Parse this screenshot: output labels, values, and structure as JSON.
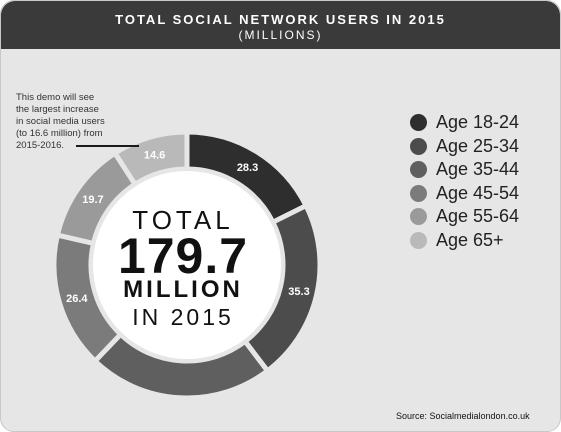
{
  "header": {
    "title": "TOTAL SOCIAL NETWORK USERS IN 2015",
    "subtitle": "(MILLIONS)"
  },
  "annotation": {
    "lines": [
      "This demo will see",
      "the largest increase",
      "in social media users",
      "(to 16.6 million) from",
      "2015-2016."
    ]
  },
  "center": {
    "label_top": "TOTAL",
    "value": "179.7",
    "unit": "MILLION",
    "year": "IN 2015"
  },
  "source": "Source:  Socialmedialondon.co.uk",
  "chart_data": {
    "type": "pie",
    "variant": "donut",
    "title": "TOTAL SOCIAL NETWORK USERS IN 2015",
    "subtitle": "(MILLIONS)",
    "total": 179.7,
    "categories": [
      "Age 18-24",
      "Age 25-34",
      "Age 35-44",
      "Age 45-54",
      "Age 55-64",
      "Age 65+"
    ],
    "values": [
      28.3,
      35.3,
      36.1,
      26.4,
      19.7,
      14.6
    ],
    "data_labels": [
      "28.3",
      "35.3",
      "",
      "26.4",
      "19.7",
      "14.6"
    ],
    "colors": [
      "#2e2e2f",
      "#4c4c4d",
      "#5f5f60",
      "#7b7b7c",
      "#9a9a9b",
      "#b9b9ba"
    ],
    "legend_position": "right"
  }
}
